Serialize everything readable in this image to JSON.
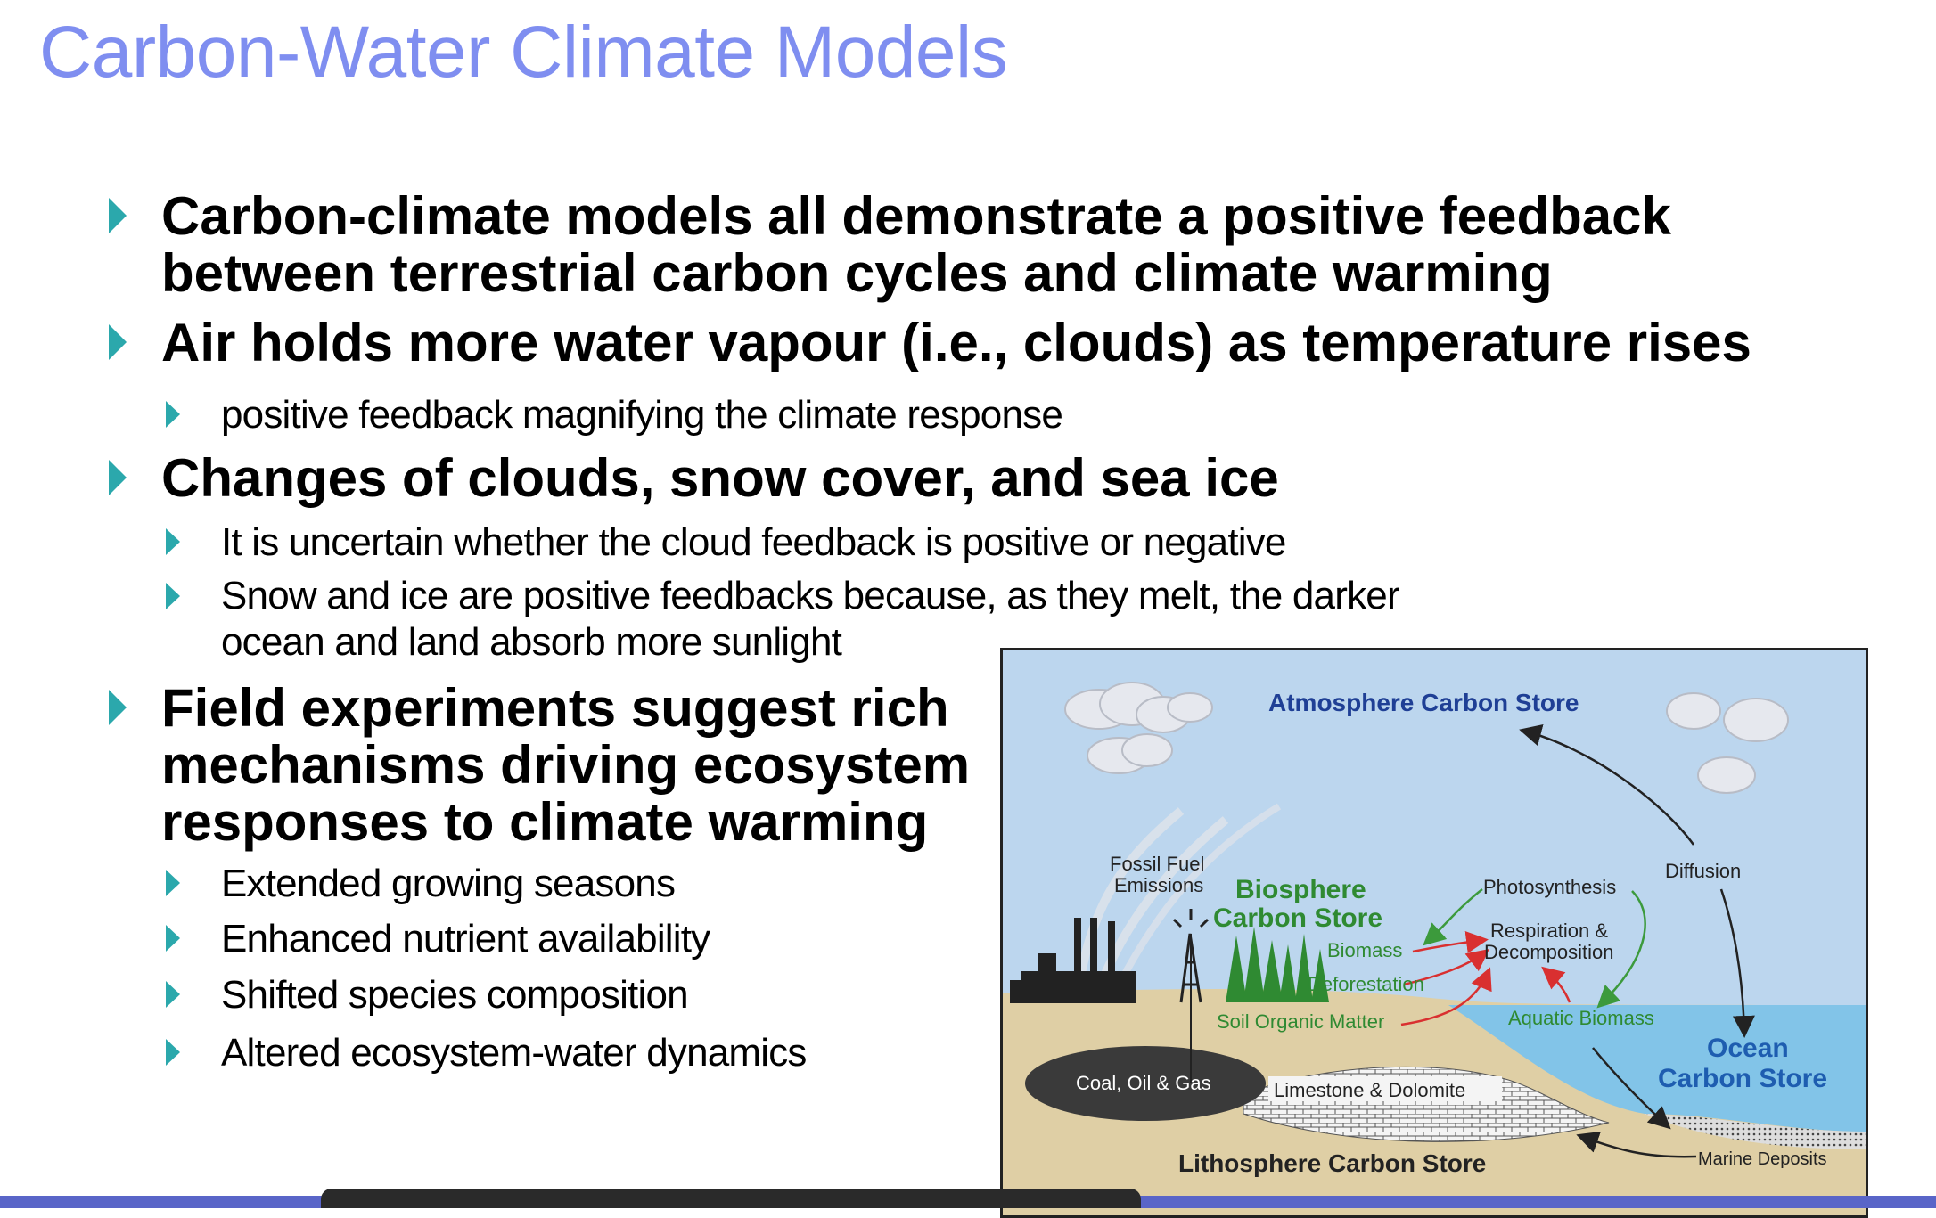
{
  "slide": {
    "title": "Carbon-Water Climate Models",
    "bullets": [
      {
        "text": [
          "Carbon-climate models all demonstrate a positive feedback",
          "between terrestrial carbon cycles and climate warming"
        ]
      },
      {
        "text": [
          "Air holds more water vapour (i.e., clouds) as temperature rises"
        ],
        "sub": [
          "positive feedback magnifying the climate response"
        ]
      },
      {
        "text": [
          "Changes of clouds, snow cover, and sea ice"
        ],
        "sub": [
          "It is uncertain whether the cloud feedback is positive or negative",
          "Snow and ice are positive feedbacks because, as they melt, the darker",
          "ocean and land absorb more sunlight"
        ]
      },
      {
        "text": [
          "Field experiments suggest rich",
          "mechanisms driving ecosystem",
          "responses to climate warming"
        ],
        "sub": [
          "Extended growing seasons",
          "Enhanced nutrient availability",
          "Shifted species composition",
          "Altered ecosystem-water dynamics"
        ]
      }
    ]
  },
  "diagram": {
    "atmosphere": "Atmosphere Carbon Store",
    "biosphere": [
      "Biosphere",
      "Carbon Store"
    ],
    "ocean": [
      "Ocean",
      "Carbon Store"
    ],
    "lithosphere": "Lithosphere Carbon Store",
    "fossil": [
      "Fossil Fuel",
      "Emissions"
    ],
    "photosynthesis": "Photosynthesis",
    "diffusion": "Diffusion",
    "respiration": [
      "Respiration &",
      "Decomposition"
    ],
    "biomass": "Biomass",
    "deforestation": "Deforestation",
    "soil": "Soil Organic Matter",
    "aquatic": "Aquatic Biomass",
    "coal": "Coal, Oil & Gas",
    "limestone": "Limestone & Dolomite",
    "marine": "Marine Deposits"
  },
  "colors": {
    "title": "#7f8ef0",
    "bullet": "#2ba8ac",
    "biosphere": "#2f8a32",
    "ocean_label": "#1e5db0",
    "atmosphere_label": "#1f3f95",
    "red_arrow": "#d93030",
    "green_arrow": "#3c9a3c"
  }
}
